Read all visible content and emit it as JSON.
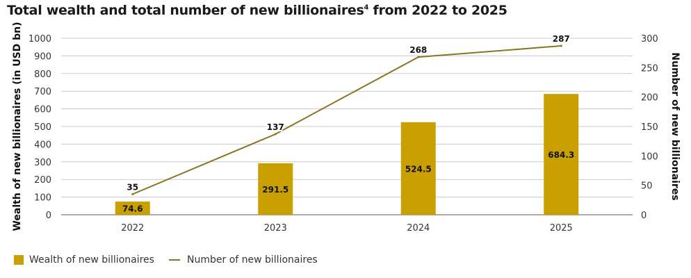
{
  "chart_data": {
    "type": "bar+line",
    "title": "Total wealth and total number of new billionaires",
    "title_sup": "4",
    "title_suffix": " from 2022 to 2025",
    "categories": [
      "2022",
      "2023",
      "2024",
      "2025"
    ],
    "series": [
      {
        "name": "Wealth of new billionaires",
        "type": "bar",
        "axis": "left",
        "values": [
          74.6,
          291.5,
          524.5,
          684.3
        ],
        "labels": [
          "74.6",
          "291.5",
          "524.5",
          "684.3"
        ],
        "color": "#c9a000"
      },
      {
        "name": "Number of new billionaires",
        "type": "line",
        "axis": "right",
        "values": [
          35,
          137,
          268,
          287
        ],
        "labels": [
          "35",
          "137",
          "268",
          "287"
        ],
        "color": "#8a7420"
      }
    ],
    "ylabel": "Wealth of new billionaires (in USD bn)",
    "y2label": "Number of new billionaires",
    "ylim": [
      0,
      1000
    ],
    "yticks": [
      0,
      100,
      200,
      300,
      400,
      500,
      600,
      700,
      800,
      900,
      1000
    ],
    "y2lim": [
      0,
      300
    ],
    "y2ticks": [
      0,
      50,
      100,
      150,
      200,
      250,
      300
    ],
    "grid": true,
    "legend": "bottom-left"
  }
}
